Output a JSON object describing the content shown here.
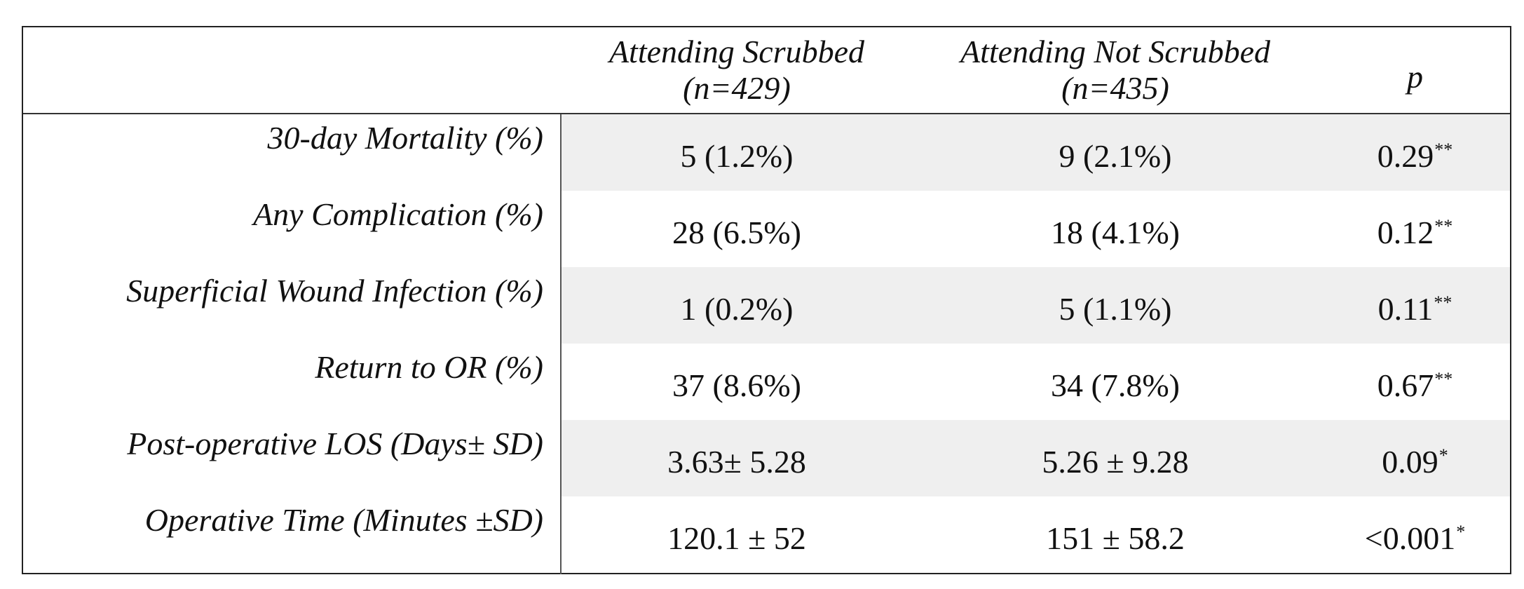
{
  "header": {
    "col1_line1": "Attending Scrubbed",
    "col1_line2": "(n=429)",
    "col2_line1": "Attending Not Scrubbed",
    "col2_line2": "(n=435)",
    "col3": "p"
  },
  "rows": [
    {
      "label": "30-day Mortality (%)",
      "scrubbed": "5 (1.2%)",
      "not_scrubbed": "9 (2.1%)",
      "p": "0.29",
      "p_mark": "**"
    },
    {
      "label": "Any Complication (%)",
      "scrubbed": "28 (6.5%)",
      "not_scrubbed": "18 (4.1%)",
      "p": "0.12",
      "p_mark": "**"
    },
    {
      "label": "Superficial Wound Infection (%)",
      "scrubbed": "1 (0.2%)",
      "not_scrubbed": "5 (1.1%)",
      "p": "0.11",
      "p_mark": "**"
    },
    {
      "label": "Return to OR (%)",
      "scrubbed": "37 (8.6%)",
      "not_scrubbed": "34 (7.8%)",
      "p": "0.67",
      "p_mark": "**"
    },
    {
      "label": "Post-operative LOS (Days± SD)",
      "scrubbed": "3.63± 5.28",
      "not_scrubbed": "5.26 ± 9.28",
      "p": "0.09",
      "p_mark": "*"
    },
    {
      "label": "Operative Time (Minutes ±SD)",
      "scrubbed": "120.1 ± 52",
      "not_scrubbed": "151 ± 58.2",
      "p": "<0.001",
      "p_mark": "*"
    }
  ],
  "colors": {
    "shaded_row": "#efefef",
    "border": "#222222"
  }
}
